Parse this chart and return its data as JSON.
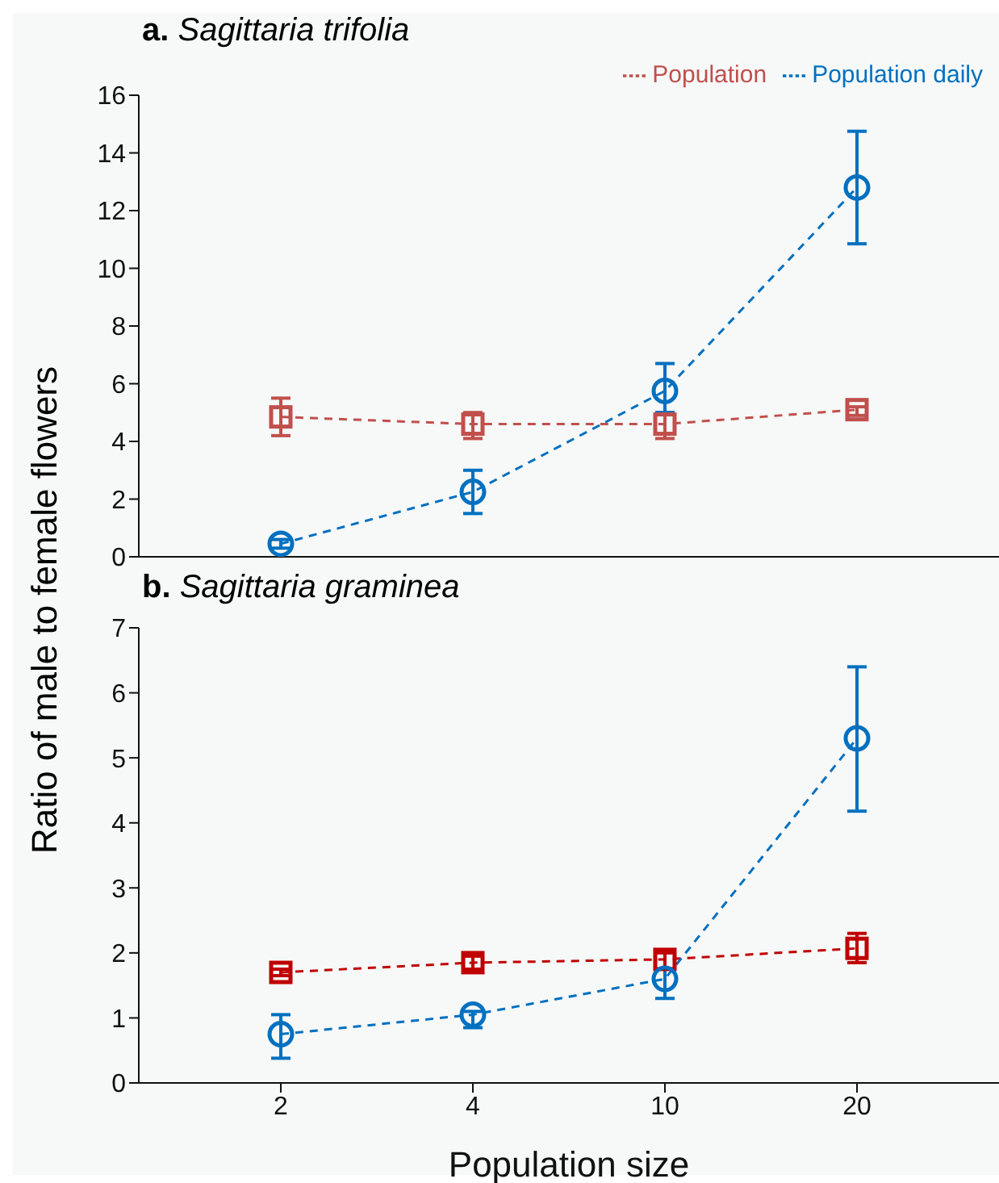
{
  "chart_data": [
    {
      "type": "line",
      "title": "a. Sagittaria trifolia",
      "ylabel": "Ratio of male to female flowers",
      "categories": [
        "2",
        "4",
        "10",
        "20"
      ],
      "ylim": [
        0,
        16
      ],
      "yticks": [
        0,
        2,
        4,
        6,
        8,
        10,
        12,
        14,
        16
      ],
      "tick_labels": "y",
      "legend": "top right",
      "line_style": "dashed",
      "grid": false,
      "series": [
        {
          "name": "Population",
          "color": "#c0504d",
          "marker": "square",
          "values": [
            4.85,
            4.6,
            4.6,
            5.1
          ],
          "errors": [
            [
              4.2,
              5.5
            ],
            [
              4.1,
              5.0
            ],
            [
              4.1,
              5.0
            ],
            [
              4.9,
              5.2
            ]
          ]
        },
        {
          "name": "Population daily",
          "color": "#0070c0",
          "marker": "circle",
          "values": [
            0.45,
            2.25,
            5.75,
            12.8
          ],
          "errors": [
            [
              0.3,
              0.6
            ],
            [
              1.5,
              3.0
            ],
            [
              5.0,
              6.7
            ],
            [
              10.85,
              14.75
            ]
          ]
        }
      ]
    },
    {
      "type": "line",
      "title": "b. Sagittaria graminea",
      "xlabel": "Population size",
      "categories": [
        "2",
        "4",
        "10",
        "20"
      ],
      "ylim": [
        0,
        7
      ],
      "yticks": [
        0,
        1,
        2,
        3,
        4,
        5,
        6,
        7
      ],
      "legend": false,
      "line_style": "dashed",
      "grid": false,
      "series": [
        {
          "color": "#c00000",
          "marker": "square",
          "values": [
            1.7,
            1.85,
            1.9,
            2.07
          ],
          "errors": [
            [
              1.65,
              1.75
            ],
            [
              1.75,
              1.95
            ],
            [
              1.75,
              2.0
            ],
            [
              1.85,
              2.3
            ]
          ]
        },
        {
          "color": "#0070c0",
          "marker": "circle",
          "values": [
            0.75,
            1.05,
            1.6,
            5.3
          ],
          "errors": [
            [
              0.38,
              1.05
            ],
            [
              0.85,
              1.1
            ],
            [
              1.3,
              1.75
            ],
            [
              4.18,
              6.4
            ]
          ]
        }
      ]
    }
  ]
}
